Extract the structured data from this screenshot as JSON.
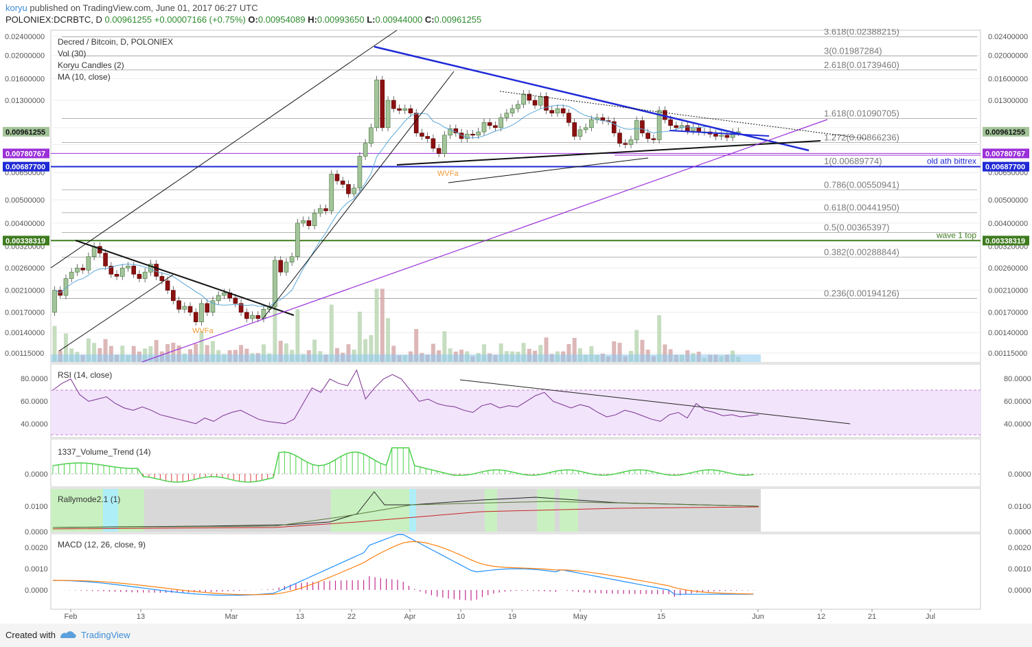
{
  "header": {
    "author": "koryu",
    "published_text": "published on TradingView.com, June 01, 2017 06:27 UTC",
    "symbol": "POLONIEX:DCRBTC, D",
    "close_price": "0.00961255",
    "change": "+0.00007166 (+0.75%)",
    "o_label": "O:",
    "o_value": "0.00954089",
    "h_label": "H:",
    "h_value": "0.00993650",
    "l_label": "L:",
    "l_value": "0.00944000",
    "c_label": "C:",
    "c_value": "0.00961255"
  },
  "legend": {
    "title": "Decred / Bitcoin, D, POLONIEX",
    "vol": "Vol (30)",
    "candles": "Koryu Candles (2)",
    "ma": "MA (10, close)"
  },
  "indicators": {
    "rsi": "RSI (14, close)",
    "volume_trend": "1337_Volume_Trend (14)",
    "rally": "Rallymode2.1 (1)",
    "macd": "MACD (12, 26, close, 9)"
  },
  "colors": {
    "up_candle": "#a3c49a",
    "down_candle": "#8b1010",
    "blue_trendline": "#1f2ad6",
    "purple_line": "#9b30d9",
    "green_line": "#3f7b1f",
    "ma_line": "#5aa7d9",
    "rsi_line": "#7b2f8f",
    "rsi_band": "#f1e4fb",
    "macd_line": "#1e90ff",
    "signal_line": "#ff7f0e",
    "histogram": "#c0288c",
    "vt_up": "#4cd04c",
    "vt_down": "#e03b3b"
  },
  "price_axis_labels": [
    "0.02400000",
    "0.02000000",
    "0.01600000",
    "0.01300000",
    "0.00961255",
    "0.00780767",
    "0.00687700",
    "0.00650000",
    "0.00500000",
    "0.00400000",
    "0.00338319",
    "0.00320000",
    "0.00260000",
    "0.00210000",
    "0.00170000",
    "0.00140000",
    "0.00115000"
  ],
  "rsi_axis_labels": [
    "80.0000",
    "60.0000",
    "40.0000"
  ],
  "vt_axis_labels": [
    "0.0000"
  ],
  "rally_axis_labels": [
    "0.0100",
    "0.0000"
  ],
  "macd_axis_labels": [
    "0.0020",
    "0.0010",
    "0.0000"
  ],
  "time_labels": [
    "Feb",
    "13",
    "Mar",
    "13",
    "22",
    "Apr",
    "10",
    "19",
    "May",
    "15",
    "Jun",
    "12",
    "21",
    "Jul"
  ],
  "fib_levels": [
    {
      "label": "3.618(0.02388215)",
      "price": 0.02388215
    },
    {
      "label": "3(0.01987284)",
      "price": 0.01987284
    },
    {
      "label": "2.618(0.01739460)",
      "price": 0.0173946
    },
    {
      "label": "1.618(0.01090705)",
      "price": 0.01090705
    },
    {
      "label": "1.272(0.00866236)",
      "price": 0.00866236
    },
    {
      "label": "1(0.00689774)",
      "price": 0.00689774
    },
    {
      "label": "0.786(0.00550941)",
      "price": 0.00550941
    },
    {
      "label": "0.618(0.00441950)",
      "price": 0.0044195
    },
    {
      "label": "0.5(0.00365397)",
      "price": 0.00365397
    },
    {
      "label": "0.382(0.00288844)",
      "price": 0.00288844
    },
    {
      "label": "0.236(0.00194126)",
      "price": 0.00194126
    }
  ],
  "horizontal_lines": [
    {
      "label": "old ath bittrex",
      "price": 0.006877,
      "badge": "0.00687700",
      "color": "#1f2ad6"
    },
    {
      "label": "wave 1 top",
      "price": 0.00338319,
      "badge": "0.00338319",
      "color": "#3f7b1f"
    },
    {
      "label": "",
      "price": 0.00780767,
      "badge": "0.00780767",
      "color": "#9b30d9"
    }
  ],
  "annotations": [
    "WVFa",
    "WVFa"
  ],
  "footer": {
    "created": "Created with",
    "brand": "TradingView"
  },
  "chart_data": {
    "type": "candlestick",
    "title": "Decred / Bitcoin, D, POLONIEX",
    "x_range": [
      "2017-01-30",
      "2017-07-08"
    ],
    "y_log_scale": true,
    "y_range": [
      0.00105,
      0.0255
    ],
    "candles": [
      [
        "2017-01-30",
        0.0017,
        0.0021
      ],
      [
        "2017-01-31",
        0.0021,
        0.002
      ],
      [
        "2017-02-01",
        0.002,
        0.00235
      ],
      [
        "2017-02-02",
        0.00235,
        0.0025
      ],
      [
        "2017-02-03",
        0.0025,
        0.0026
      ],
      [
        "2017-02-04",
        0.0026,
        0.00255
      ],
      [
        "2017-02-05",
        0.00255,
        0.0029
      ],
      [
        "2017-02-06",
        0.0029,
        0.0032
      ],
      [
        "2017-02-07",
        0.0032,
        0.003
      ],
      [
        "2017-02-08",
        0.003,
        0.00265
      ],
      [
        "2017-02-09",
        0.00265,
        0.00245
      ],
      [
        "2017-02-10",
        0.00245,
        0.0024
      ],
      [
        "2017-02-11",
        0.0024,
        0.0026
      ],
      [
        "2017-02-12",
        0.0026,
        0.00265
      ],
      [
        "2017-02-13",
        0.00265,
        0.00245
      ],
      [
        "2017-02-14",
        0.00245,
        0.00235
      ],
      [
        "2017-02-15",
        0.00235,
        0.0025
      ],
      [
        "2017-02-16",
        0.0025,
        0.0027
      ],
      [
        "2017-02-17",
        0.0027,
        0.0024
      ],
      [
        "2017-02-18",
        0.0024,
        0.0023
      ],
      [
        "2017-02-19",
        0.0023,
        0.0021
      ],
      [
        "2017-02-20",
        0.0021,
        0.0019
      ],
      [
        "2017-02-21",
        0.0019,
        0.00175
      ],
      [
        "2017-02-22",
        0.00175,
        0.0018
      ],
      [
        "2017-02-23",
        0.0018,
        0.0017
      ],
      [
        "2017-02-24",
        0.0017,
        0.00155
      ],
      [
        "2017-02-25",
        0.00155,
        0.00185
      ],
      [
        "2017-02-26",
        0.00185,
        0.0017
      ],
      [
        "2017-02-27",
        0.0017,
        0.0019
      ],
      [
        "2017-02-28",
        0.0019,
        0.002
      ],
      [
        "2017-03-01",
        0.002,
        0.00205
      ],
      [
        "2017-03-02",
        0.00205,
        0.00195
      ],
      [
        "2017-03-03",
        0.00195,
        0.00185
      ],
      [
        "2017-03-04",
        0.00185,
        0.0017
      ],
      [
        "2017-03-05",
        0.0017,
        0.0016
      ],
      [
        "2017-03-06",
        0.0016,
        0.00165
      ],
      [
        "2017-03-07",
        0.00165,
        0.0016
      ],
      [
        "2017-03-08",
        0.0016,
        0.00175
      ],
      [
        "2017-03-09",
        0.00175,
        0.0018
      ],
      [
        "2017-03-10",
        0.0018,
        0.0028
      ],
      [
        "2017-03-11",
        0.0028,
        0.0025
      ],
      [
        "2017-03-12",
        0.0025,
        0.00275
      ],
      [
        "2017-03-13",
        0.00275,
        0.0029
      ],
      [
        "2017-03-14",
        0.0029,
        0.004
      ],
      [
        "2017-03-15",
        0.004,
        0.0041
      ],
      [
        "2017-03-16",
        0.0041,
        0.0039
      ],
      [
        "2017-03-17",
        0.0039,
        0.0044
      ],
      [
        "2017-03-18",
        0.0044,
        0.0046
      ],
      [
        "2017-03-19",
        0.0046,
        0.0045
      ],
      [
        "2017-03-20",
        0.0045,
        0.0064
      ],
      [
        "2017-03-21",
        0.0064,
        0.006
      ],
      [
        "2017-03-22",
        0.006,
        0.0058
      ],
      [
        "2017-03-23",
        0.0058,
        0.0053
      ],
      [
        "2017-03-24",
        0.0053,
        0.0056
      ],
      [
        "2017-03-25",
        0.0056,
        0.0076
      ],
      [
        "2017-03-26",
        0.0076,
        0.0086
      ],
      [
        "2017-03-27",
        0.0086,
        0.01
      ],
      [
        "2017-03-28",
        0.01,
        0.0158
      ],
      [
        "2017-03-29",
        0.0158,
        0.01
      ],
      [
        "2017-03-30",
        0.01,
        0.013
      ],
      [
        "2017-03-31",
        0.013,
        0.012
      ],
      [
        "2017-04-01",
        0.012,
        0.0118
      ],
      [
        "2017-04-02",
        0.0118,
        0.012
      ],
      [
        "2017-04-03",
        0.012,
        0.0115
      ],
      [
        "2017-04-04",
        0.0115,
        0.0095
      ],
      [
        "2017-04-05",
        0.0095,
        0.0092
      ],
      [
        "2017-04-06",
        0.0092,
        0.009
      ],
      [
        "2017-04-07",
        0.009,
        0.0082
      ],
      [
        "2017-04-08",
        0.0082,
        0.0078
      ],
      [
        "2017-04-09",
        0.0078,
        0.0093
      ],
      [
        "2017-04-10",
        0.0093,
        0.0099
      ],
      [
        "2017-04-11",
        0.0099,
        0.0095
      ],
      [
        "2017-04-12",
        0.0095,
        0.009
      ],
      [
        "2017-04-13",
        0.009,
        0.0094
      ],
      [
        "2017-04-14",
        0.0094,
        0.0093
      ],
      [
        "2017-04-15",
        0.0093,
        0.0096
      ],
      [
        "2017-04-16",
        0.0096,
        0.0105
      ],
      [
        "2017-04-17",
        0.0105,
        0.0102
      ],
      [
        "2017-04-18",
        0.0102,
        0.01
      ],
      [
        "2017-04-19",
        0.01,
        0.011
      ],
      [
        "2017-04-20",
        0.011,
        0.0115
      ],
      [
        "2017-04-21",
        0.0115,
        0.012
      ],
      [
        "2017-04-22",
        0.012,
        0.0125
      ],
      [
        "2017-04-23",
        0.0125,
        0.0138
      ],
      [
        "2017-04-24",
        0.0138,
        0.013
      ],
      [
        "2017-04-25",
        0.013,
        0.0124
      ],
      [
        "2017-04-26",
        0.0124,
        0.0135
      ],
      [
        "2017-04-27",
        0.0135,
        0.0118
      ],
      [
        "2017-04-28",
        0.0118,
        0.0115
      ],
      [
        "2017-04-29",
        0.0115,
        0.012
      ],
      [
        "2017-04-30",
        0.012,
        0.0115
      ],
      [
        "2017-05-01",
        0.0115,
        0.0105
      ],
      [
        "2017-05-02",
        0.0105,
        0.0092
      ],
      [
        "2017-05-03",
        0.0092,
        0.0098
      ],
      [
        "2017-05-04",
        0.0098,
        0.01
      ],
      [
        "2017-05-05",
        0.01,
        0.0108
      ],
      [
        "2017-05-06",
        0.0108,
        0.011
      ],
      [
        "2017-05-07",
        0.011,
        0.0107
      ],
      [
        "2017-05-08",
        0.0107,
        0.0106
      ],
      [
        "2017-05-09",
        0.0106,
        0.0095
      ],
      [
        "2017-05-10",
        0.0095,
        0.0086
      ],
      [
        "2017-05-11",
        0.0086,
        0.0085
      ],
      [
        "2017-05-12",
        0.0085,
        0.0089
      ],
      [
        "2017-05-13",
        0.0089,
        0.0107
      ],
      [
        "2017-05-14",
        0.0107,
        0.0095
      ],
      [
        "2017-05-15",
        0.0095,
        0.009
      ],
      [
        "2017-05-16",
        0.009,
        0.0089
      ],
      [
        "2017-05-17",
        0.0089,
        0.0118
      ],
      [
        "2017-05-18",
        0.0118,
        0.0108
      ],
      [
        "2017-05-19",
        0.0108,
        0.0102
      ],
      [
        "2017-05-20",
        0.0102,
        0.01
      ],
      [
        "2017-05-21",
        0.01,
        0.0102
      ],
      [
        "2017-05-22",
        0.0102,
        0.0097
      ],
      [
        "2017-05-23",
        0.0097,
        0.01
      ],
      [
        "2017-05-24",
        0.01,
        0.0096
      ],
      [
        "2017-05-25",
        0.0096,
        0.0096
      ],
      [
        "2017-05-26",
        0.0096,
        0.0094
      ],
      [
        "2017-05-27",
        0.0094,
        0.0092
      ],
      [
        "2017-05-28",
        0.0092,
        0.0093
      ],
      [
        "2017-05-29",
        0.0093,
        0.0091
      ],
      [
        "2017-05-30",
        0.0091,
        0.00955
      ],
      [
        "2017-05-31",
        0.00955,
        0.00961
      ]
    ],
    "overlays": [
      "MA (10, close)",
      "Vol (30)"
    ]
  }
}
